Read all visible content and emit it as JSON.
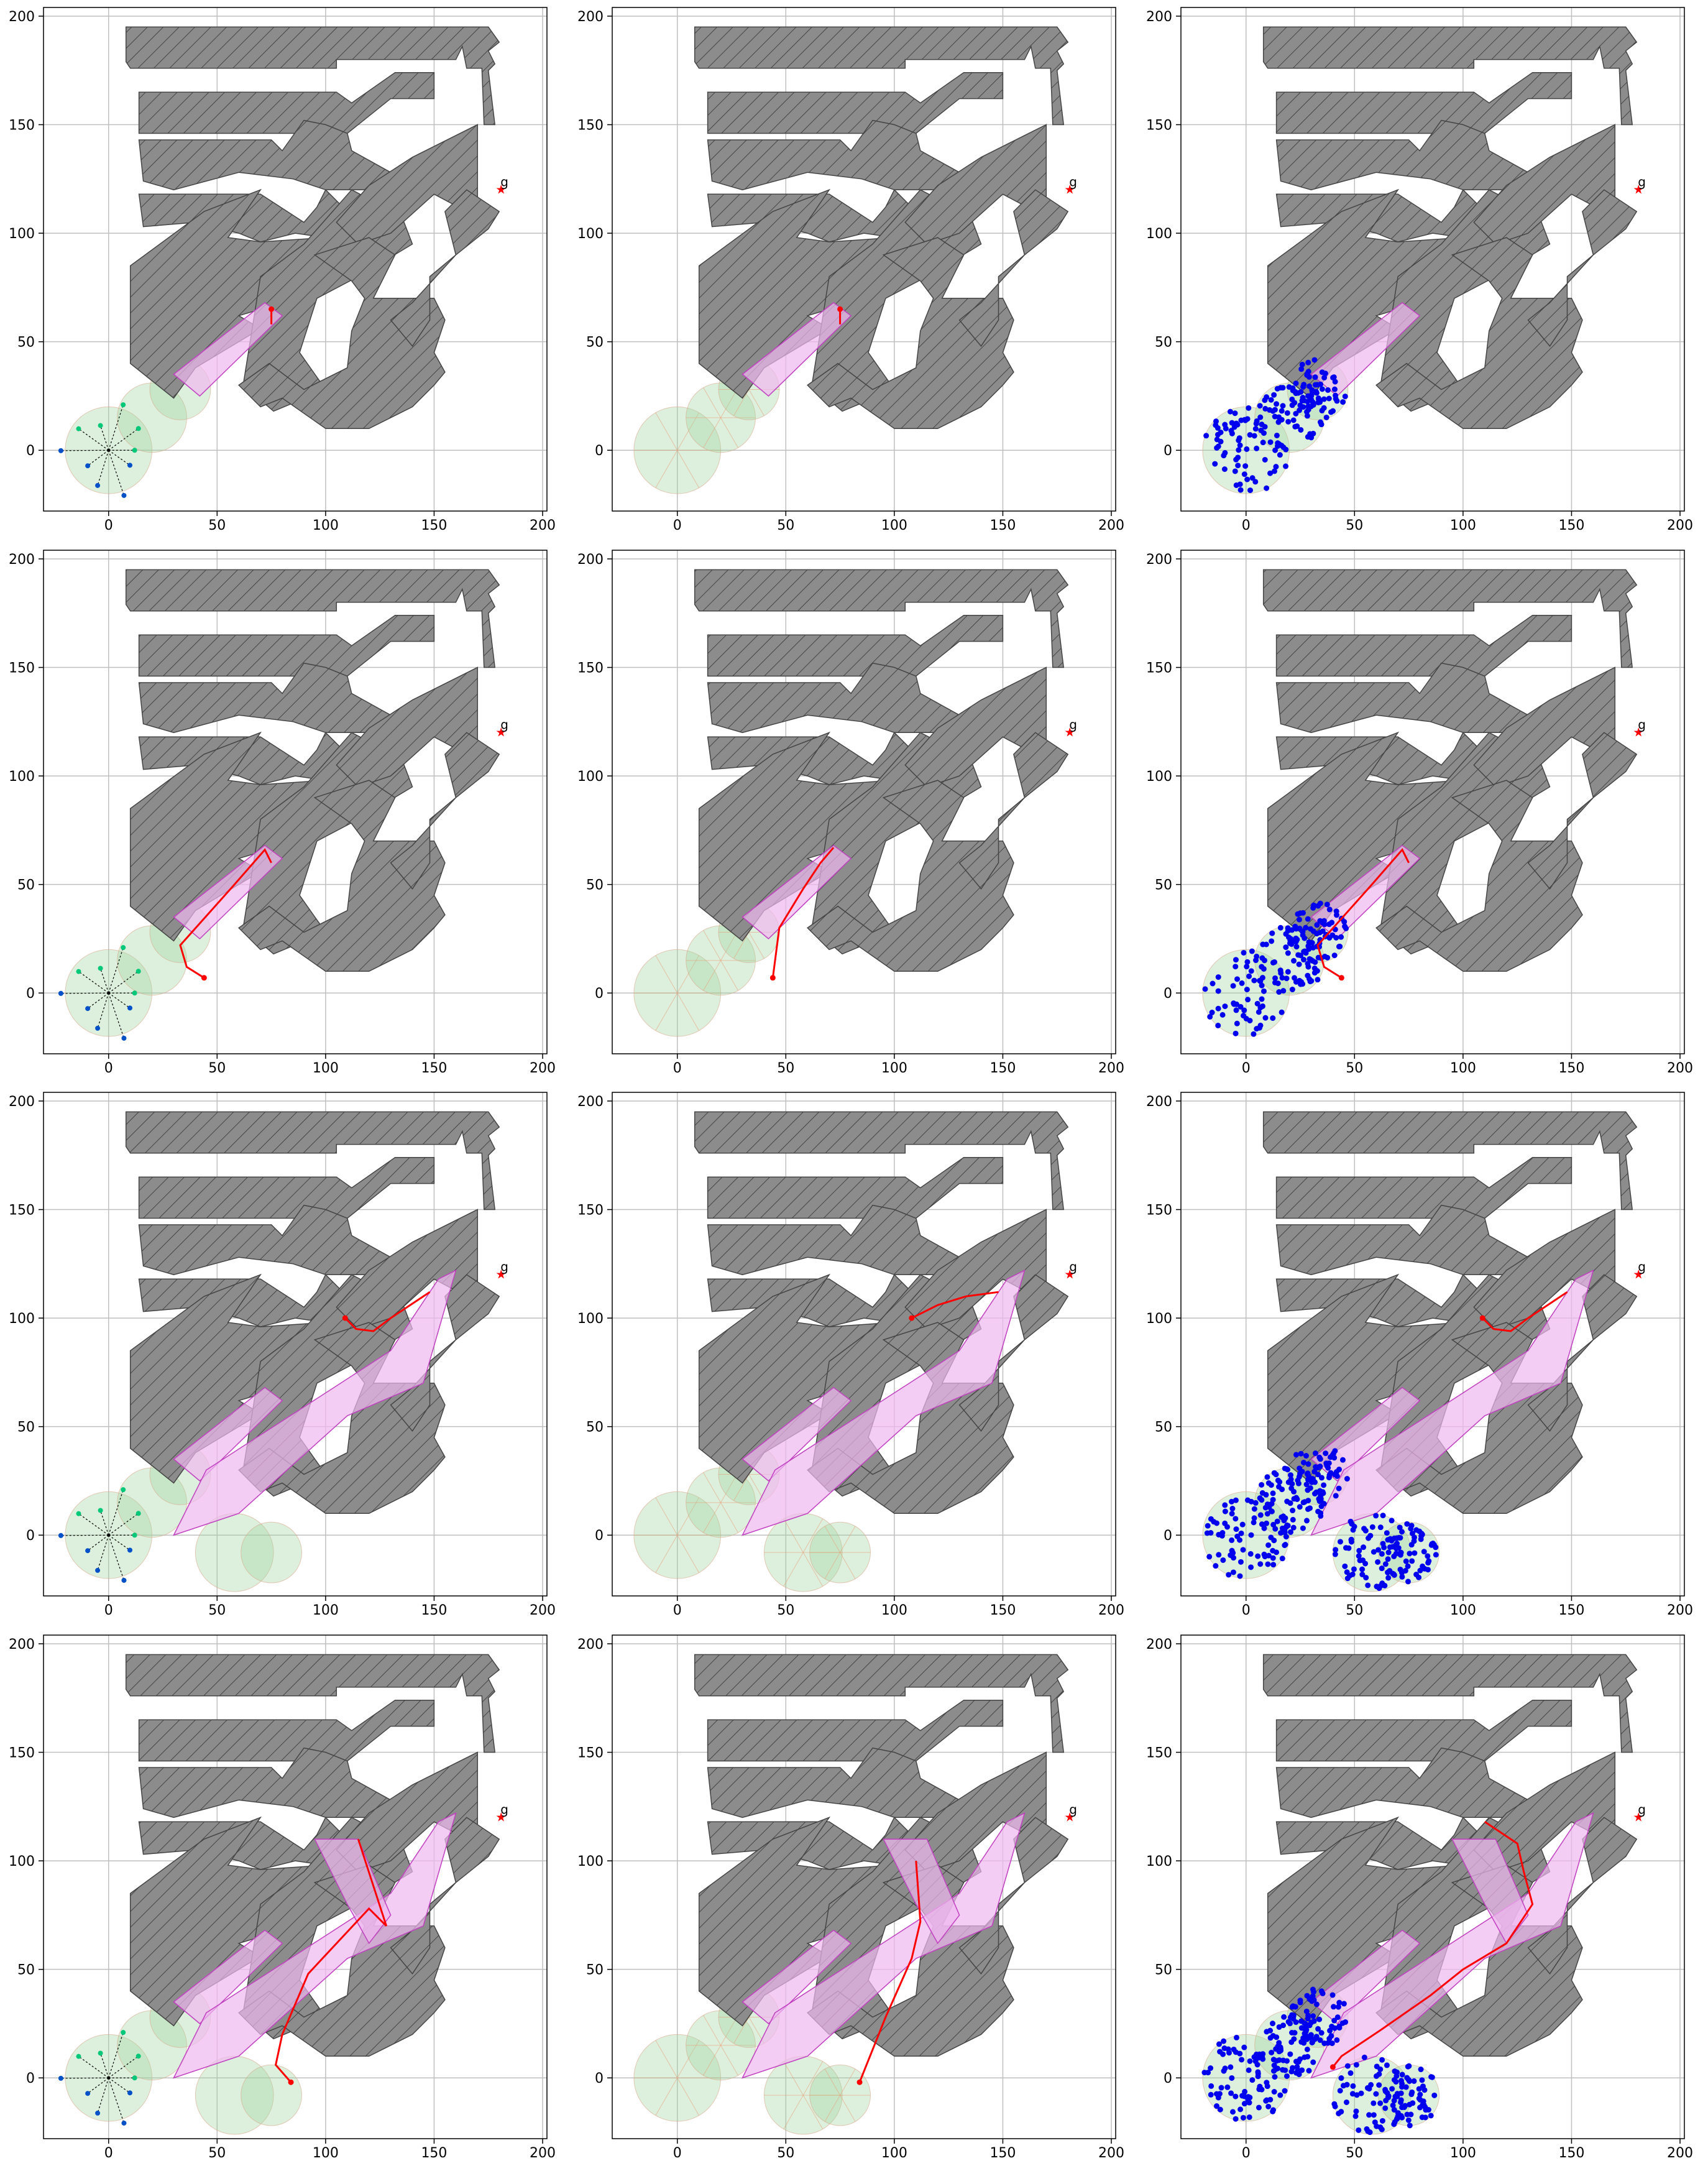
{
  "figure": {
    "rows": 4,
    "cols": 3,
    "background": "#ffffff"
  },
  "style": {
    "obstacle_fill": "#8c8c8c",
    "obstacle_stroke": "#444444",
    "grid_color": "#bfbfbf",
    "region_fill": "#9fd49f",
    "corridor_fill": "#f0b8f0",
    "corridor_stroke": "#c040c0",
    "path_color": "#ff0000",
    "tree_color": "#000000",
    "sample_color": "#0000ee",
    "goal_color": "#ff0000"
  },
  "chart_data": {
    "type": "scatter",
    "xlim": [
      -30,
      202
    ],
    "ylim": [
      -28,
      204
    ],
    "xticks": [
      0,
      50,
      100,
      150,
      200
    ],
    "yticks": [
      0,
      50,
      100,
      150,
      200
    ],
    "grid": true,
    "goal": {
      "x": 180,
      "y": 120,
      "label": "g"
    },
    "obstacles": [
      [
        [
          8,
          195
        ],
        [
          175,
          195
        ],
        [
          180,
          188
        ],
        [
          175,
          184
        ],
        [
          178,
          178
        ],
        [
          175,
          175
        ],
        [
          178,
          150
        ],
        [
          173,
          150
        ],
        [
          172,
          176
        ],
        [
          165,
          176
        ],
        [
          163,
          186
        ],
        [
          160,
          180
        ],
        [
          105,
          180
        ],
        [
          105,
          176
        ],
        [
          10,
          176
        ],
        [
          8,
          179
        ]
      ],
      [
        [
          14,
          165
        ],
        [
          105,
          165
        ],
        [
          112,
          160
        ],
        [
          132,
          174
        ],
        [
          150,
          174
        ],
        [
          150,
          162
        ],
        [
          130,
          162
        ],
        [
          120,
          154
        ],
        [
          110,
          146
        ],
        [
          14,
          146
        ]
      ],
      [
        [
          14,
          143
        ],
        [
          75,
          143
        ],
        [
          80,
          138
        ],
        [
          90,
          152
        ],
        [
          100,
          150
        ],
        [
          110,
          146
        ],
        [
          112,
          138
        ],
        [
          130,
          128
        ],
        [
          120,
          120
        ],
        [
          100,
          120
        ],
        [
          85,
          125
        ],
        [
          60,
          128
        ],
        [
          30,
          120
        ],
        [
          16,
          124
        ]
      ],
      [
        [
          14,
          118
        ],
        [
          70,
          118
        ],
        [
          90,
          105
        ],
        [
          96,
          112
        ],
        [
          100,
          120
        ],
        [
          108,
          112
        ],
        [
          100,
          98
        ],
        [
          86,
          100
        ],
        [
          70,
          96
        ],
        [
          60,
          100
        ],
        [
          40,
          105
        ],
        [
          16,
          103
        ]
      ],
      [
        [
          10,
          85
        ],
        [
          44,
          110
        ],
        [
          70,
          120
        ],
        [
          55,
          98
        ],
        [
          70,
          96
        ],
        [
          100,
          98
        ],
        [
          80,
          68
        ],
        [
          60,
          62
        ],
        [
          70,
          56
        ],
        [
          40,
          38
        ],
        [
          30,
          24
        ],
        [
          20,
          32
        ],
        [
          10,
          40
        ]
      ],
      [
        [
          70,
          80
        ],
        [
          90,
          95
        ],
        [
          112,
          120
        ],
        [
          135,
          108
        ],
        [
          140,
          95
        ],
        [
          115,
          80
        ],
        [
          96,
          70
        ],
        [
          88,
          45
        ],
        [
          100,
          28
        ],
        [
          76,
          18
        ],
        [
          62,
          30
        ]
      ],
      [
        [
          105,
          105
        ],
        [
          120,
          122
        ],
        [
          140,
          135
        ],
        [
          170,
          150
        ],
        [
          170,
          115
        ],
        [
          165,
          110
        ],
        [
          150,
          118
        ],
        [
          130,
          100
        ],
        [
          115,
          95
        ]
      ],
      [
        [
          95,
          90
        ],
        [
          120,
          98
        ],
        [
          132,
          90
        ],
        [
          122,
          70
        ],
        [
          150,
          70
        ],
        [
          155,
          60
        ],
        [
          150,
          45
        ],
        [
          155,
          36
        ],
        [
          150,
          30
        ],
        [
          140,
          20
        ],
        [
          120,
          10
        ],
        [
          100,
          10
        ],
        [
          80,
          24
        ],
        [
          70,
          20
        ],
        [
          60,
          30
        ],
        [
          74,
          40
        ],
        [
          90,
          28
        ],
        [
          110,
          38
        ],
        [
          112,
          55
        ],
        [
          118,
          70
        ],
        [
          112,
          78
        ]
      ],
      [
        [
          130,
          60
        ],
        [
          140,
          68
        ],
        [
          160,
          90
        ],
        [
          175,
          102
        ],
        [
          180,
          110
        ],
        [
          165,
          120
        ],
        [
          155,
          110
        ],
        [
          160,
          90
        ],
        [
          148,
          80
        ],
        [
          148,
          60
        ],
        [
          140,
          48
        ]
      ]
    ],
    "start_regions": [
      {
        "x": 0,
        "y": 0,
        "r": 20
      },
      {
        "x": 20,
        "y": 15,
        "r": 16
      },
      {
        "x": 33,
        "y": 28,
        "r": 14
      }
    ],
    "extra_regions": [
      {
        "x": 58,
        "y": -8,
        "r": 18
      },
      {
        "x": 75,
        "y": -8,
        "r": 14
      }
    ],
    "corridor_a": [
      [
        30,
        35
      ],
      [
        72,
        68
      ],
      [
        80,
        62
      ],
      [
        42,
        25
      ]
    ],
    "corridor_b": [
      [
        30,
        0
      ],
      [
        45,
        30
      ],
      [
        110,
        72
      ],
      [
        130,
        85
      ],
      [
        152,
        118
      ],
      [
        160,
        122
      ],
      [
        145,
        70
      ],
      [
        110,
        55
      ],
      [
        60,
        10
      ]
    ],
    "corridor_c": [
      [
        95,
        110
      ],
      [
        115,
        110
      ],
      [
        130,
        75
      ],
      [
        120,
        62
      ],
      [
        110,
        80
      ],
      [
        100,
        100
      ]
    ],
    "paths": [
      [
        [
          75,
          65
        ],
        [
          75,
          58
        ]
      ],
      [
        [
          44,
          7
        ],
        [
          36,
          12
        ],
        [
          33,
          22
        ],
        [
          58,
          50
        ],
        [
          72,
          66
        ],
        [
          75,
          60
        ]
      ],
      [
        [
          44,
          7
        ],
        [
          47,
          30
        ],
        [
          58,
          48
        ],
        [
          66,
          60
        ],
        [
          72,
          67
        ]
      ],
      [
        [
          109,
          100
        ],
        [
          114,
          95
        ],
        [
          122,
          94
        ],
        [
          130,
          100
        ],
        [
          148,
          112
        ]
      ],
      [
        [
          108,
          100
        ],
        [
          120,
          106
        ],
        [
          133,
          110
        ],
        [
          148,
          112
        ]
      ],
      [
        [
          84,
          -2
        ],
        [
          77,
          6
        ],
        [
          80,
          20
        ],
        [
          92,
          48
        ],
        [
          120,
          78
        ],
        [
          128,
          70
        ],
        [
          115,
          110
        ]
      ],
      [
        [
          84,
          -2
        ],
        [
          96,
          28
        ],
        [
          108,
          55
        ],
        [
          112,
          72
        ],
        [
          110,
          100
        ]
      ],
      [
        [
          40,
          5
        ],
        [
          44,
          10
        ],
        [
          62,
          22
        ],
        [
          85,
          38
        ],
        [
          100,
          50
        ],
        [
          120,
          62
        ],
        [
          132,
          80
        ],
        [
          128,
          95
        ],
        [
          125,
          108
        ],
        [
          110,
          118
        ]
      ]
    ],
    "panels": [
      {
        "id": "r1c1",
        "style": "tree",
        "regions": "start",
        "corridors": [
          "a"
        ],
        "path": 0,
        "tree": true,
        "samples": false
      },
      {
        "id": "r1c2",
        "style": "triangulation",
        "regions": "start",
        "corridors": [
          "a"
        ],
        "path": 0,
        "tree": false,
        "samples": false
      },
      {
        "id": "r1c3",
        "style": "samples",
        "regions": "start",
        "corridors": [
          "a"
        ],
        "path": null,
        "tree": false,
        "samples": true
      },
      {
        "id": "r2c1",
        "style": "tree",
        "regions": "start",
        "corridors": [
          "a"
        ],
        "path": 1,
        "tree": true,
        "samples": false
      },
      {
        "id": "r2c2",
        "style": "triangulation",
        "regions": "start",
        "corridors": [
          "a"
        ],
        "path": 2,
        "tree": false,
        "samples": false
      },
      {
        "id": "r2c3",
        "style": "samples",
        "regions": "start",
        "corridors": [
          "a"
        ],
        "path": 1,
        "tree": false,
        "samples": true
      },
      {
        "id": "r3c1",
        "style": "tree",
        "regions": "all",
        "corridors": [
          "a",
          "b"
        ],
        "path": 3,
        "tree": true,
        "samples": false
      },
      {
        "id": "r3c2",
        "style": "triangulation",
        "regions": "all",
        "corridors": [
          "a",
          "b"
        ],
        "path": 4,
        "tree": false,
        "samples": false
      },
      {
        "id": "r3c3",
        "style": "samples",
        "regions": "all",
        "corridors": [
          "a",
          "b"
        ],
        "path": 3,
        "tree": false,
        "samples": true
      },
      {
        "id": "r4c1",
        "style": "tree",
        "regions": "all",
        "corridors": [
          "a",
          "b",
          "c"
        ],
        "path": 5,
        "tree": true,
        "samples": false
      },
      {
        "id": "r4c2",
        "style": "triangulation",
        "regions": "all",
        "corridors": [
          "a",
          "b",
          "c"
        ],
        "path": 6,
        "tree": false,
        "samples": false
      },
      {
        "id": "r4c3",
        "style": "samples",
        "regions": "all",
        "corridors": [
          "a",
          "b",
          "c"
        ],
        "path": 7,
        "tree": false,
        "samples": true
      }
    ]
  }
}
